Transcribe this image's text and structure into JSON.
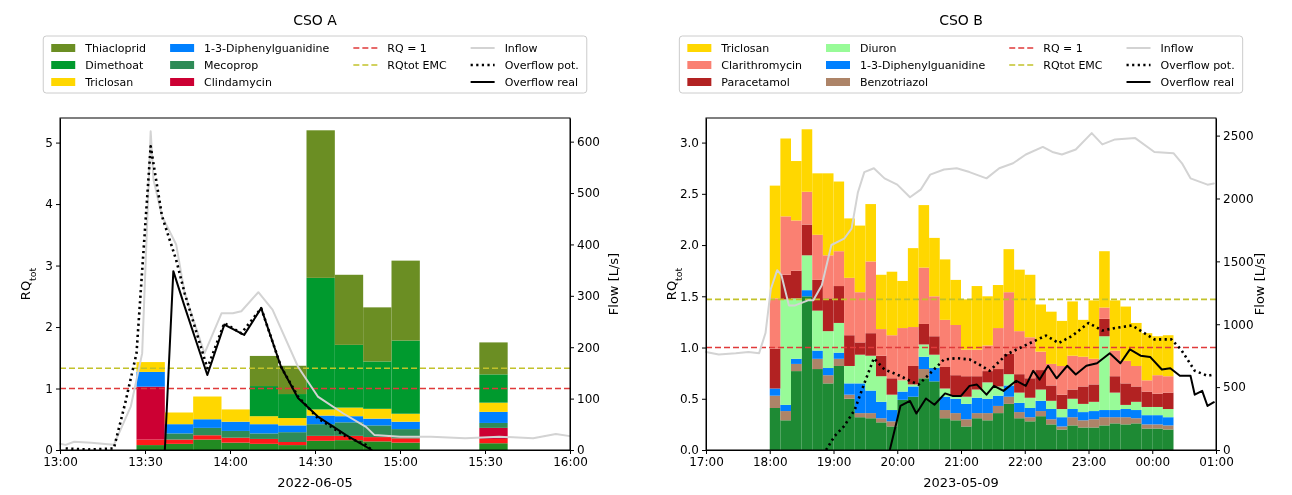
{
  "chart_data": [
    {
      "type": "bar",
      "title": "CSO A",
      "xlabel": "2022-06-05",
      "ylabel": "RQ$_{tot}$",
      "y2label": "Flow [L/s]",
      "stacked": true,
      "legend": "top",
      "x": [
        "2022-06-05T13:32",
        "2022-06-05T13:42",
        "2022-06-05T13:52",
        "2022-06-05T14:02",
        "2022-06-05T14:12",
        "2022-06-05T14:22",
        "2022-06-05T14:32",
        "2022-06-05T14:42",
        "2022-06-05T14:52",
        "2022-06-05T15:02",
        "2022-06-05T15:33"
      ],
      "xlim": [
        "2022-06-05T13:00",
        "2022-06-05T16:00"
      ],
      "xticks": [
        {
          "value": "2022-06-05T13:00",
          "label": "13:00"
        },
        {
          "value": "2022-06-05T13:30",
          "label": "13:30"
        },
        {
          "value": "2022-06-05T14:00",
          "label": "14:00"
        },
        {
          "value": "2022-06-05T14:30",
          "label": "14:30"
        },
        {
          "value": "2022-06-05T15:00",
          "label": "15:00"
        },
        {
          "value": "2022-06-05T15:30",
          "label": "15:30"
        },
        {
          "value": "2022-06-05T16:00",
          "label": "16:00"
        }
      ],
      "ylim": [
        0,
        5.4
      ],
      "yticks": [
        0,
        1,
        2,
        3,
        4,
        5
      ],
      "y2lim": [
        0,
        646
      ],
      "y2ticks": [
        0,
        100,
        200,
        300,
        400,
        500,
        600
      ],
      "series": [
        {
          "color": "#228b22",
          "values": [
            0.08,
            0.1,
            0.17,
            0.12,
            0.1,
            0.08,
            0.15,
            0.16,
            0.14,
            0.12,
            0.11
          ]
        },
        {
          "color": "#ff1a1a",
          "values": [
            0.09,
            0.07,
            0.07,
            0.08,
            0.08,
            0.05,
            0.08,
            0.07,
            0.07,
            0.07,
            0.07
          ]
        },
        {
          "name": "Clindamycin",
          "color": "#cc0033",
          "values": [
            0.86,
            null,
            null,
            null,
            null,
            null,
            null,
            null,
            null,
            null,
            0.18
          ]
        },
        {
          "name": "Mecoprop",
          "color": "#2e8b57",
          "values": [
            null,
            0.1,
            0.12,
            0.11,
            0.09,
            0.16,
            0.19,
            0.22,
            0.19,
            0.15,
            0.08
          ]
        },
        {
          "name": "1-3-Diphenylguanidine",
          "color": "#0080ff",
          "values": [
            0.24,
            0.15,
            0.14,
            0.15,
            0.15,
            0.11,
            0.14,
            0.1,
            0.11,
            0.12,
            0.18
          ]
        },
        {
          "name": "Triclosan",
          "color": "#ffd700",
          "values": [
            0.16,
            0.19,
            0.37,
            0.2,
            0.13,
            0.12,
            0.1,
            0.14,
            0.16,
            0.13,
            0.15
          ]
        },
        {
          "name": "Dimethoat",
          "color": "#009a2e",
          "values": [
            null,
            null,
            null,
            null,
            0.49,
            0.39,
            2.14,
            1.02,
            0.77,
            1.19,
            0.46
          ]
        },
        {
          "name": "Thiacloprid",
          "color": "#6b8e23",
          "values": [
            null,
            null,
            null,
            null,
            0.49,
            0.46,
            2.4,
            1.14,
            0.88,
            1.3,
            0.52
          ]
        },
        {
          "name": "Inflow",
          "type": "line",
          "axis": "y2",
          "color": "#d3d3d3",
          "line_style": "solid",
          "x": [
            "2022-06-05T13:00",
            "2022-06-05T13:02",
            "2022-06-05T13:05",
            "2022-06-05T13:11",
            "2022-06-05T13:19",
            "2022-06-05T13:25",
            "2022-06-05T13:29",
            "2022-06-05T13:32",
            "2022-06-05T13:33",
            "2022-06-05T13:36",
            "2022-06-05T13:41",
            "2022-06-05T13:44",
            "2022-06-05T13:51",
            "2022-06-05T13:57",
            "2022-06-05T14:01",
            "2022-06-05T14:04",
            "2022-06-05T14:10",
            "2022-06-05T14:15",
            "2022-06-05T14:24",
            "2022-06-05T14:31",
            "2022-06-05T14:40",
            "2022-06-05T14:48",
            "2022-06-05T14:51",
            "2022-06-05T15:00",
            "2022-06-05T15:11",
            "2022-06-05T15:23",
            "2022-06-05T15:35",
            "2022-06-05T15:47",
            "2022-06-05T15:55",
            "2022-06-05T16:00"
          ],
          "values": [
            12,
            10,
            16,
            14,
            10,
            85,
            188,
            620,
            526,
            455,
            400,
            305,
            188,
            266,
            266,
            270,
            307,
            273,
            162,
            104,
            71,
            45,
            29,
            26,
            26,
            23,
            26,
            23,
            31,
            27
          ]
        },
        {
          "name": "Overflow pot.",
          "type": "line",
          "axis": "y2",
          "color": "#000000",
          "line_style": "dotted",
          "x": [
            "2022-06-05T13:02",
            "2022-06-05T13:10",
            "2022-06-05T13:19",
            "2022-06-05T13:23",
            "2022-06-05T13:27",
            "2022-06-05T13:32",
            "2022-06-05T13:36",
            "2022-06-05T13:41",
            "2022-06-05T13:44",
            "2022-06-05T13:52",
            "2022-06-05T13:58",
            "2022-06-05T14:04",
            "2022-06-05T14:11",
            "2022-06-05T14:18",
            "2022-06-05T14:24",
            "2022-06-05T14:31",
            "2022-06-05T14:41",
            "2022-06-05T14:48",
            "2022-06-05T14:50"
          ],
          "values": [
            3,
            1,
            3,
            91,
            188,
            591,
            455,
            370,
            305,
            159,
            247,
            227,
            276,
            162,
            104,
            62,
            26,
            10,
            0
          ]
        },
        {
          "name": "Overflow real",
          "type": "line",
          "axis": "y2",
          "color": "#000000",
          "line_style": "solid",
          "x": [
            "2022-06-05T13:37",
            "2022-06-05T13:40",
            "2022-06-05T13:44",
            "2022-06-05T13:52",
            "2022-06-05T13:58",
            "2022-06-05T14:05",
            "2022-06-05T14:11",
            "2022-06-05T14:18",
            "2022-06-05T14:24",
            "2022-06-05T14:31",
            "2022-06-05T14:41",
            "2022-06-05T14:50"
          ],
          "values": [
            0,
            348,
            279,
            146,
            244,
            224,
            276,
            162,
            101,
            65,
            29,
            0
          ]
        }
      ],
      "ref_lines": [
        {
          "axis": "y",
          "value": 1,
          "label": "RQ = 1",
          "color": "#e03a3a",
          "line_style": "dashed"
        },
        {
          "axis": "y",
          "value": 1.33,
          "label": "RQtot EMC",
          "color": "#c2c22a",
          "line_style": "dashed"
        }
      ]
    },
    {
      "type": "bar",
      "title": "CSO B",
      "xlabel": "2023-05-09",
      "ylabel": "RQ$_{tot}$",
      "y2label": "Flow [L/s]",
      "stacked": true,
      "legend": "top",
      "x": [
        "2023-05-09T18:05",
        "2023-05-09T18:15",
        "2023-05-09T18:25",
        "2023-05-09T18:35",
        "2023-05-09T18:45",
        "2023-05-09T18:55",
        "2023-05-09T19:05",
        "2023-05-09T19:15",
        "2023-05-09T19:25",
        "2023-05-09T19:35",
        "2023-05-09T19:45",
        "2023-05-09T19:55",
        "2023-05-09T20:05",
        "2023-05-09T20:15",
        "2023-05-09T20:25",
        "2023-05-09T20:35",
        "2023-05-09T20:45",
        "2023-05-09T20:55",
        "2023-05-09T21:05",
        "2023-05-09T21:15",
        "2023-05-09T21:25",
        "2023-05-09T21:35",
        "2023-05-09T21:45",
        "2023-05-09T21:55",
        "2023-05-09T22:05",
        "2023-05-09T22:15",
        "2023-05-09T22:25",
        "2023-05-09T22:35",
        "2023-05-09T22:45",
        "2023-05-09T22:55",
        "2023-05-09T23:05",
        "2023-05-09T23:15",
        "2023-05-09T23:25",
        "2023-05-09T23:35",
        "2023-05-09T23:45",
        "2023-05-09T23:55",
        "2023-05-10T00:05",
        "2023-05-10T00:15"
      ],
      "xlim": [
        "2023-05-09T17:00",
        "2023-05-10T01:00"
      ],
      "xticks": [
        {
          "value": "2023-05-09T17:00",
          "label": "17:00"
        },
        {
          "value": "2023-05-09T18:00",
          "label": "18:00"
        },
        {
          "value": "2023-05-09T19:00",
          "label": "19:00"
        },
        {
          "value": "2023-05-09T20:00",
          "label": "20:00"
        },
        {
          "value": "2023-05-09T21:00",
          "label": "21:00"
        },
        {
          "value": "2023-05-09T22:00",
          "label": "22:00"
        },
        {
          "value": "2023-05-09T23:00",
          "label": "23:00"
        },
        {
          "value": "2023-05-10T00:00",
          "label": "00:00"
        },
        {
          "value": "2023-05-10T01:00",
          "label": "01:00"
        }
      ],
      "ylim": [
        0,
        3.24
      ],
      "yticks": [
        {
          "value": 0,
          "label": "0.0"
        },
        {
          "value": 0.5,
          "label": "0.5"
        },
        {
          "value": 1,
          "label": "1.0"
        },
        {
          "value": 1.5,
          "label": "1.5"
        },
        {
          "value": 2,
          "label": "2.0"
        },
        {
          "value": 2.5,
          "label": "2.5"
        },
        {
          "value": 3,
          "label": "3.0"
        }
      ],
      "y2lim": [
        0,
        2640
      ],
      "y2ticks": [
        0,
        500,
        1000,
        1500,
        2000,
        2500
      ],
      "series": [
        {
          "color": "#1e8a34",
          "values": [
            0.41,
            0.29,
            0.77,
            1.5,
            0.79,
            0.65,
            0.82,
            0.5,
            0.32,
            0.31,
            0.27,
            0.23,
            0.49,
            0.52,
            0.7,
            0.67,
            0.31,
            0.29,
            0.23,
            0.31,
            0.29,
            0.36,
            0.45,
            0.31,
            0.28,
            0.33,
            0.25,
            0.2,
            0.24,
            0.22,
            0.22,
            0.24,
            0.26,
            0.25,
            0.26,
            0.21,
            0.21,
            0.2
          ]
        },
        {
          "name": "Benzotriazol",
          "color": "#ad8468",
          "values": [
            0.12,
            0.09,
            0.07,
            null,
            0.1,
            0.08,
            0.07,
            0.04,
            0.04,
            0.05,
            0.04,
            0.05,
            null,
            null,
            0.09,
            null,
            0.08,
            0.07,
            0.07,
            0.05,
            0.07,
            0.07,
            0.07,
            0.06,
            0.04,
            0.05,
            0.05,
            0.03,
            0.08,
            0.07,
            0.08,
            0.08,
            0.06,
            0.07,
            0.05,
            0.04,
            0.04,
            0.04
          ]
        },
        {
          "name": "1-3-Diphenylguanidine",
          "color": "#0080ff",
          "values": [
            0.07,
            0.06,
            0.05,
            0.06,
            0.08,
            0.07,
            0.06,
            0.11,
            0.29,
            0.22,
            0.16,
            0.11,
            0.08,
            0.1,
            0.12,
            0.13,
            0.13,
            0.14,
            0.15,
            0.15,
            0.14,
            0.1,
            0.11,
            0.09,
            0.09,
            0.1,
            0.1,
            0.09,
            0.08,
            0.08,
            0.08,
            0.07,
            0.07,
            0.08,
            0.08,
            0.09,
            0.09,
            0.08
          ]
        },
        {
          "name": "Diuron",
          "color": "#98fb98",
          "values": [
            null,
            1.03,
            0.59,
            0.34,
            0.39,
            0.36,
            0.29,
            0.17,
            0.28,
            0.34,
            0.25,
            0.15,
            0.11,
            0.02,
            0.12,
            0.13,
            0.08,
            0.03,
            0.07,
            0.08,
            0.16,
            0.09,
            0.11,
            0.1,
            0.1,
            0.11,
            0.08,
            0.08,
            0.1,
            0.08,
            0.09,
            0.72,
            0.17,
            0.04,
            0.08,
            0.08,
            0.08,
            0.08
          ]
        },
        {
          "name": "Paracetamol",
          "color": "#b22222",
          "values": [
            0.39,
            0.24,
            0.27,
            0.3,
            0.3,
            0.32,
            0.36,
            0.3,
            0.12,
            0.22,
            0.2,
            0.16,
            null,
            0.18,
            0.2,
            0.18,
            0.21,
            0.2,
            0.2,
            0.13,
            0.11,
            0.17,
            0.2,
            0.18,
            0.19,
            0.19,
            0.15,
            0.14,
            0.09,
            0.17,
            0.17,
            0.17,
            0.16,
            0.21,
            0.15,
            0.15,
            0.13,
            0.16
          ]
        },
        {
          "name": "Clarithromycin",
          "color": "#fa8072",
          "values": [
            0.49,
            0.57,
            0.49,
            0.32,
            0.44,
            0.42,
            0.34,
            0.56,
            0.49,
            0.7,
            0.26,
            0.42,
            0.51,
            0.38,
            0.55,
            0.39,
            0.46,
            0.49,
            0.26,
            0.26,
            0.25,
            0.4,
            0.6,
            0.42,
            0.4,
            0.18,
            0.21,
            0.28,
            0.33,
            0.29,
            0.25,
            0.11,
            0.25,
            0.22,
            0.2,
            0.11,
            0.18,
            0.16
          ]
        },
        {
          "name": "Triclosan",
          "color": "#ffd700",
          "values": [
            1.1,
            0.76,
            0.58,
            0.61,
            0.6,
            0.8,
            0.68,
            0.58,
            0.65,
            0.56,
            0.53,
            0.62,
            0.46,
            0.77,
            0.61,
            0.57,
            0.59,
            0.44,
            0.49,
            0.62,
            0.48,
            0.42,
            0.42,
            0.6,
            0.61,
            0.46,
            0.51,
            0.44,
            0.53,
            0.36,
            0.57,
            0.55,
            0.49,
            0.53,
            0.42,
            0.46,
            0.38,
            0.4
          ]
        },
        {
          "name": "Inflow",
          "type": "line",
          "axis": "y2",
          "color": "#d3d3d3",
          "line_style": "solid",
          "x": [
            "2023-05-09T17:00",
            "2023-05-09T17:12",
            "2023-05-09T17:28",
            "2023-05-09T17:40",
            "2023-05-09T17:50",
            "2023-05-09T17:56",
            "2023-05-09T18:01",
            "2023-05-09T18:07",
            "2023-05-09T18:11",
            "2023-05-09T18:18",
            "2023-05-09T18:24",
            "2023-05-09T18:36",
            "2023-05-09T18:41",
            "2023-05-09T18:49",
            "2023-05-09T18:58",
            "2023-05-09T19:10",
            "2023-05-09T19:17",
            "2023-05-09T19:23",
            "2023-05-09T19:29",
            "2023-05-09T19:38",
            "2023-05-09T19:48",
            "2023-05-09T20:00",
            "2023-05-09T20:12",
            "2023-05-09T20:22",
            "2023-05-09T20:31",
            "2023-05-09T20:44",
            "2023-05-09T20:56",
            "2023-05-09T21:08",
            "2023-05-09T21:24",
            "2023-05-09T21:36",
            "2023-05-09T21:49",
            "2023-05-09T22:01",
            "2023-05-09T22:17",
            "2023-05-09T22:26",
            "2023-05-09T22:35",
            "2023-05-09T22:48",
            "2023-05-09T23:03",
            "2023-05-09T23:13",
            "2023-05-09T23:25",
            "2023-05-09T23:44",
            "2023-05-10T00:02",
            "2023-05-10T00:20",
            "2023-05-10T00:28",
            "2023-05-10T00:36",
            "2023-05-10T00:52",
            "2023-05-10T00:58"
          ],
          "values": [
            780,
            760,
            770,
            780,
            770,
            930,
            1280,
            1430,
            1390,
            1150,
            1150,
            1190,
            1190,
            1310,
            1630,
            1680,
            1760,
            2050,
            2210,
            2240,
            2160,
            2110,
            2010,
            2070,
            2190,
            2230,
            2240,
            2210,
            2160,
            2240,
            2280,
            2350,
            2410,
            2370,
            2350,
            2390,
            2520,
            2430,
            2470,
            2480,
            2370,
            2360,
            2280,
            2160,
            2110,
            2120
          ]
        },
        {
          "name": "Overflow pot.",
          "type": "line",
          "axis": "y2",
          "color": "#000000",
          "line_style": "dotted",
          "x": [
            "2023-05-09T18:53",
            "2023-05-09T19:01",
            "2023-05-09T19:10",
            "2023-05-09T19:20",
            "2023-05-09T19:29",
            "2023-05-09T19:38",
            "2023-05-09T19:48",
            "2023-05-09T20:00",
            "2023-05-09T20:12",
            "2023-05-09T20:20",
            "2023-05-09T20:31",
            "2023-05-09T20:44",
            "2023-05-09T20:56",
            "2023-05-09T21:08",
            "2023-05-09T21:15",
            "2023-05-09T21:27",
            "2023-05-09T21:43",
            "2023-05-09T21:55",
            "2023-05-09T22:10",
            "2023-05-09T22:20",
            "2023-05-09T22:32",
            "2023-05-09T22:45",
            "2023-05-09T23:00",
            "2023-05-09T23:13",
            "2023-05-09T23:25",
            "2023-05-09T23:41",
            "2023-05-10T00:02",
            "2023-05-10T00:18",
            "2023-05-10T00:27",
            "2023-05-10T00:40",
            "2023-05-10T00:52",
            "2023-05-10T00:58"
          ],
          "values": [
            0,
            110,
            190,
            320,
            530,
            730,
            640,
            600,
            550,
            520,
            610,
            720,
            730,
            720,
            690,
            630,
            760,
            810,
            870,
            910,
            850,
            910,
            1010,
            950,
            970,
            990,
            880,
            880,
            800,
            630,
            590,
            600
          ]
        },
        {
          "name": "Overflow real",
          "type": "line",
          "axis": "y2",
          "color": "#000000",
          "line_style": "solid",
          "x": [
            "2023-05-09T19:53",
            "2023-05-09T20:03",
            "2023-05-09T20:12",
            "2023-05-09T20:18",
            "2023-05-09T20:27",
            "2023-05-09T20:35",
            "2023-05-09T20:45",
            "2023-05-09T20:52",
            "2023-05-09T21:00",
            "2023-05-09T21:08",
            "2023-05-09T21:15",
            "2023-05-09T21:24",
            "2023-05-09T21:31",
            "2023-05-09T21:40",
            "2023-05-09T21:52",
            "2023-05-09T22:01",
            "2023-05-09T22:08",
            "2023-05-09T22:14",
            "2023-05-09T22:22",
            "2023-05-09T22:30",
            "2023-05-09T22:40",
            "2023-05-09T22:48",
            "2023-05-09T22:58",
            "2023-05-09T23:08",
            "2023-05-09T23:20",
            "2023-05-09T23:30",
            "2023-05-09T23:39",
            "2023-05-09T23:49",
            "2023-05-09T23:58",
            "2023-05-10T00:09",
            "2023-05-10T00:17",
            "2023-05-10T00:26",
            "2023-05-10T00:36",
            "2023-05-10T00:40",
            "2023-05-10T00:47",
            "2023-05-10T00:52",
            "2023-05-10T00:58"
          ],
          "values": [
            0,
            350,
            390,
            290,
            410,
            360,
            450,
            430,
            430,
            510,
            520,
            440,
            510,
            470,
            550,
            510,
            630,
            560,
            670,
            570,
            670,
            600,
            670,
            690,
            770,
            690,
            800,
            750,
            740,
            640,
            650,
            590,
            590,
            440,
            470,
            350,
            380
          ]
        }
      ],
      "ref_lines": [
        {
          "axis": "y",
          "value": 1,
          "label": "RQ = 1",
          "color": "#e03a3a",
          "line_style": "dashed"
        },
        {
          "axis": "y",
          "value": 1.47,
          "label": "RQtot EMC",
          "color": "#c2c22a",
          "line_style": "dashed"
        }
      ]
    }
  ]
}
